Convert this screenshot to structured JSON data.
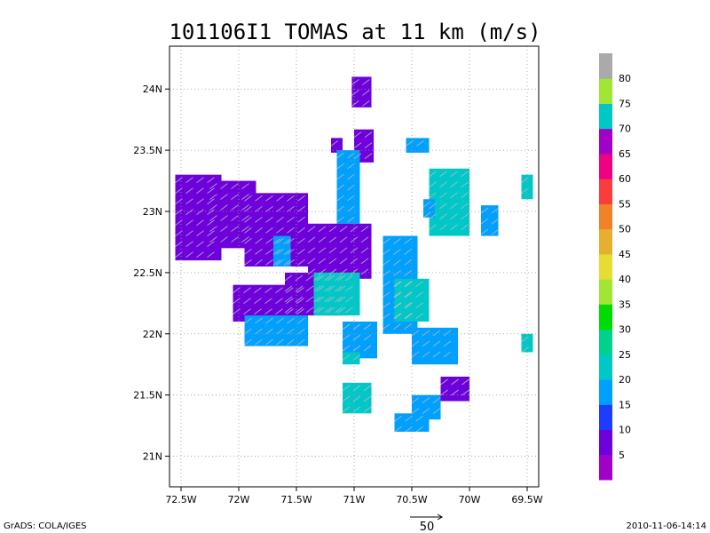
{
  "chart_data": {
    "type": "heatmap",
    "title": "101106I1 TOMAS at 11 km (m/s)",
    "x_ticks": [
      "72.5W",
      "72W",
      "71.5W",
      "71W",
      "70.5W",
      "70W",
      "69.5W"
    ],
    "x_values": [
      -72.5,
      -72.0,
      -71.5,
      -71.0,
      -70.5,
      -70.0,
      -69.5
    ],
    "xlim": [
      -72.6,
      -69.4
    ],
    "y_ticks": [
      "21N",
      "21.5N",
      "22N",
      "22.5N",
      "23N",
      "23.5N",
      "24N"
    ],
    "y_values": [
      21.0,
      21.5,
      22.0,
      22.5,
      23.0,
      23.5,
      24.0
    ],
    "ylim": [
      20.75,
      24.35
    ],
    "grid": true,
    "colorbar": {
      "labels": [
        "5",
        "10",
        "15",
        "20",
        "25",
        "30",
        "35",
        "40",
        "45",
        "50",
        "55",
        "60",
        "65",
        "70",
        "75",
        "80"
      ],
      "colors": [
        "#a000c8",
        "#6e00dc",
        "#1e3cff",
        "#00a0ff",
        "#00c8c8",
        "#00d28c",
        "#00dc00",
        "#a0e632",
        "#e6dc32",
        "#e6af2d",
        "#f08228",
        "#fa3c3c",
        "#f00082",
        "#a000c8",
        "#00c8c8",
        "#a0e632",
        "#aaaaaa"
      ]
    },
    "regions": [
      {
        "lon": [
          -71.02,
          -70.85
        ],
        "lat": [
          23.85,
          24.1
        ],
        "speed": 5
      },
      {
        "lon": [
          -71.2,
          -71.1
        ],
        "lat": [
          23.48,
          23.6
        ],
        "speed": 5
      },
      {
        "lon": [
          -71.0,
          -70.83
        ],
        "lat": [
          23.4,
          23.67
        ],
        "speed": 5
      },
      {
        "lon": [
          -71.15,
          -70.95
        ],
        "lat": [
          22.9,
          23.5
        ],
        "speed": 15
      },
      {
        "lon": [
          -72.55,
          -72.15
        ],
        "lat": [
          22.6,
          23.3
        ],
        "speed": 5
      },
      {
        "lon": [
          -72.25,
          -71.85
        ],
        "lat": [
          22.7,
          23.25
        ],
        "speed": 5
      },
      {
        "lon": [
          -71.95,
          -71.4
        ],
        "lat": [
          22.55,
          23.15
        ],
        "speed": 5
      },
      {
        "lon": [
          -71.4,
          -70.85
        ],
        "lat": [
          22.45,
          22.9
        ],
        "speed": 5
      },
      {
        "lon": [
          -71.7,
          -71.55
        ],
        "lat": [
          22.55,
          22.8
        ],
        "speed": 15
      },
      {
        "lon": [
          -72.05,
          -71.4
        ],
        "lat": [
          22.1,
          22.4
        ],
        "speed": 5
      },
      {
        "lon": [
          -71.6,
          -71.05
        ],
        "lat": [
          22.15,
          22.5
        ],
        "speed": 5
      },
      {
        "lon": [
          -71.95,
          -71.4
        ],
        "lat": [
          21.9,
          22.15
        ],
        "speed": 15
      },
      {
        "lon": [
          -71.35,
          -70.95
        ],
        "lat": [
          22.15,
          22.5
        ],
        "speed": 20
      },
      {
        "lon": [
          -70.55,
          -70.35
        ],
        "lat": [
          23.48,
          23.6
        ],
        "speed": 15
      },
      {
        "lon": [
          -70.35,
          -70.0
        ],
        "lat": [
          22.8,
          23.35
        ],
        "speed": 20
      },
      {
        "lon": [
          -70.4,
          -70.3
        ],
        "lat": [
          22.95,
          23.1
        ],
        "speed": 15
      },
      {
        "lon": [
          -69.9,
          -69.75
        ],
        "lat": [
          22.8,
          23.05
        ],
        "speed": 15
      },
      {
        "lon": [
          -69.55,
          -69.45
        ],
        "lat": [
          23.1,
          23.3
        ],
        "speed": 20
      },
      {
        "lon": [
          -70.75,
          -70.45
        ],
        "lat": [
          22.0,
          22.8
        ],
        "speed": 15
      },
      {
        "lon": [
          -70.65,
          -70.35
        ],
        "lat": [
          22.1,
          22.45
        ],
        "speed": 20
      },
      {
        "lon": [
          -70.5,
          -70.1
        ],
        "lat": [
          21.75,
          22.05
        ],
        "speed": 15
      },
      {
        "lon": [
          -71.1,
          -70.8
        ],
        "lat": [
          21.8,
          22.1
        ],
        "speed": 15
      },
      {
        "lon": [
          -71.1,
          -70.95
        ],
        "lat": [
          21.75,
          21.85
        ],
        "speed": 20
      },
      {
        "lon": [
          -69.55,
          -69.45
        ],
        "lat": [
          21.85,
          22.0
        ],
        "speed": 20
      },
      {
        "lon": [
          -71.1,
          -70.85
        ],
        "lat": [
          21.35,
          21.6
        ],
        "speed": 20
      },
      {
        "lon": [
          -70.5,
          -70.25
        ],
        "lat": [
          21.3,
          21.5
        ],
        "speed": 15
      },
      {
        "lon": [
          -70.25,
          -70.0
        ],
        "lat": [
          21.45,
          21.65
        ],
        "speed": 5
      },
      {
        "lon": [
          -70.65,
          -70.35
        ],
        "lat": [
          21.2,
          21.35
        ],
        "speed": 15
      }
    ],
    "reference_vector_label": "50"
  },
  "footer": {
    "left": "GrADS: COLA/IGES",
    "right": "2010-11-06-14:14"
  }
}
